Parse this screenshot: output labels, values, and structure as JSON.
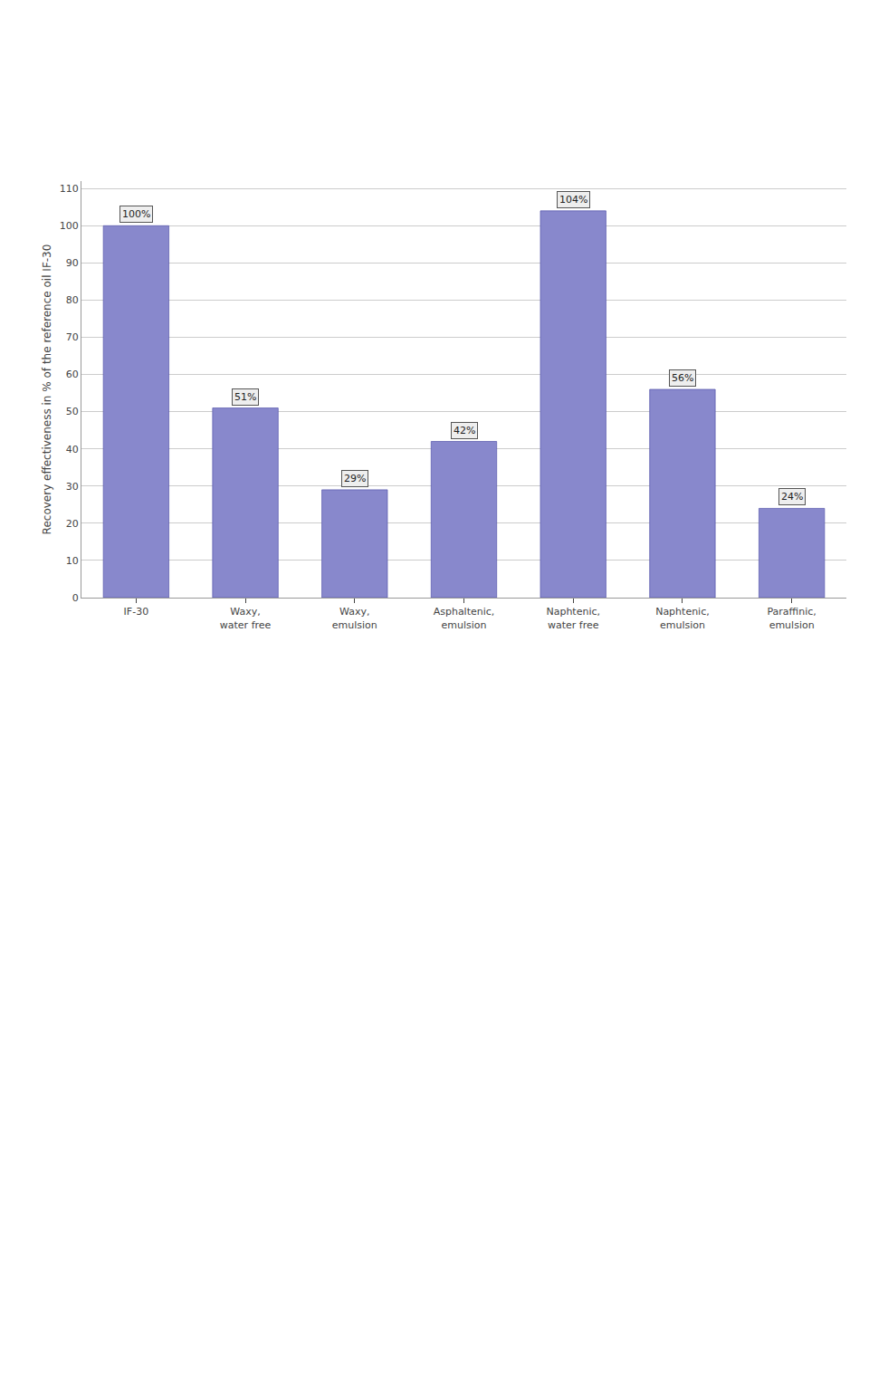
{
  "chart_data": {
    "type": "bar",
    "categories": [
      "IF-30",
      "Waxy,\nwater free",
      "Waxy,\nemulsion",
      "Asphaltenic,\nemulsion",
      "Naphtenic,\nwater free",
      "Naphtenic,\nemulsion",
      "Paraffinic,\nemulsion"
    ],
    "values": [
      100,
      51,
      29,
      42,
      104,
      56,
      24
    ],
    "value_labels": [
      "100%",
      "51%",
      "29%",
      "42%",
      "104%",
      "56%",
      "24%"
    ],
    "data_labels": true,
    "color": "#8888cc",
    "ylabel": "Recovery effectiveness in % of the reference oil IF-30",
    "ylim": [
      0,
      112
    ],
    "yticks": [
      0,
      10,
      20,
      30,
      40,
      50,
      60,
      70,
      80,
      90,
      100,
      110
    ],
    "grid": true
  }
}
